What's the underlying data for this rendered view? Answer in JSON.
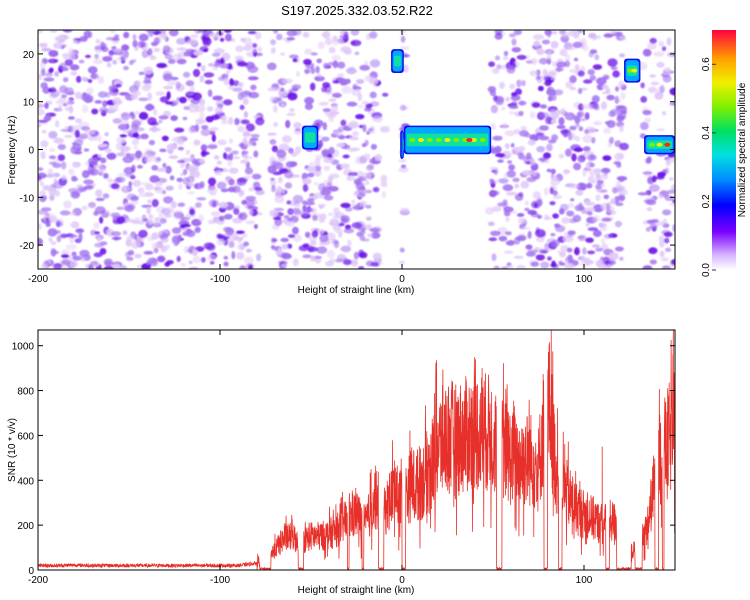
{
  "title": "S197.2025.332.03.52.R22",
  "colors": {
    "snr_line": "#e8302a",
    "heat_light": "#e0c8f8",
    "heat_mid": "#a070f0",
    "heat_dark": "#6a10e8",
    "background": "#ffffff"
  },
  "chart_data": [
    {
      "type": "heatmap",
      "name": "spectrogram",
      "xlabel": "Height of straight line (km)",
      "ylabel": "Frequency (Hz)",
      "xlim": [
        -200,
        150
      ],
      "ylim": [
        -25,
        25
      ],
      "xticks": [
        "-200",
        "-100",
        "0",
        "100"
      ],
      "xtick_values": [
        -200,
        -100,
        0,
        100
      ],
      "yticks": [
        "-20",
        "-10",
        "0",
        "10",
        "20"
      ],
      "ytick_values": [
        -20,
        -10,
        0,
        10,
        20
      ],
      "colorbar": {
        "label": "Normalized spectral amplitude",
        "range": [
          0.0,
          0.7
        ],
        "ticks": [
          "0.0",
          "0.2",
          "0.4",
          "0.6"
        ],
        "tick_values": [
          0.0,
          0.2,
          0.4,
          0.6
        ]
      },
      "blank_regions": [
        [
          -78,
          -72
        ],
        [
          -57,
          -54
        ],
        [
          -13,
          -10
        ],
        [
          -9,
          0
        ],
        [
          2,
          48
        ],
        [
          122,
          132
        ],
        [
          139,
          141
        ]
      ],
      "features": [
        {
          "label": "bright spot",
          "x": [
            -55,
            -46
          ],
          "y": [
            0,
            5
          ],
          "peak": 0.3
        },
        {
          "label": "bright spot",
          "x": [
            -1,
            1
          ],
          "y": [
            -2,
            4
          ],
          "peak": 0.2
        },
        {
          "label": "bright spot",
          "x": [
            -6,
            1
          ],
          "y": [
            16,
            21
          ],
          "peak": 0.35
        },
        {
          "label": "signal band",
          "x": [
            1,
            49
          ],
          "y": [
            -1,
            5
          ],
          "peak": 0.68
        },
        {
          "label": "bright spot",
          "x": [
            122,
            131
          ],
          "y": [
            14,
            19
          ],
          "peak": 0.45
        },
        {
          "label": "signal band",
          "x": [
            133,
            150
          ],
          "y": [
            -1,
            3
          ],
          "peak": 0.68
        }
      ]
    },
    {
      "type": "line",
      "name": "snr",
      "xlabel": "Height of straight line (km)",
      "ylabel": "SNR (10 * v/v)",
      "xlim": [
        -200,
        150
      ],
      "ylim": [
        0,
        1070
      ],
      "xticks": [
        "-200",
        "-100",
        "0",
        "100"
      ],
      "xtick_values": [
        -200,
        -100,
        0,
        100
      ],
      "yticks": [
        "0",
        "200",
        "400",
        "600",
        "800",
        "1000"
      ],
      "ytick_values": [
        0,
        200,
        400,
        600,
        800,
        1000
      ],
      "series": [
        {
          "name": "SNR",
          "color": "#e8302a",
          "x": [
            -200,
            -190,
            -180,
            -170,
            -160,
            -150,
            -140,
            -130,
            -120,
            -110,
            -100,
            -90,
            -80,
            -75,
            -70,
            -65,
            -60,
            -55,
            -50,
            -45,
            -40,
            -35,
            -30,
            -25,
            -20,
            -15,
            -10,
            -5,
            0,
            5,
            10,
            15,
            20,
            25,
            30,
            35,
            40,
            45,
            50,
            55,
            60,
            65,
            70,
            75,
            80,
            85,
            90,
            95,
            100,
            105,
            110,
            115,
            120,
            125,
            130,
            135,
            140,
            145,
            150
          ],
          "y": [
            20,
            20,
            22,
            20,
            20,
            20,
            20,
            20,
            20,
            20,
            20,
            20,
            30,
            45,
            90,
            140,
            150,
            130,
            150,
            150,
            160,
            180,
            230,
            250,
            200,
            320,
            250,
            350,
            300,
            380,
            380,
            450,
            550,
            600,
            580,
            600,
            620,
            620,
            600,
            560,
            500,
            480,
            500,
            450,
            800,
            420,
            350,
            280,
            250,
            230,
            200,
            220,
            200,
            80,
            100,
            200,
            450,
            550,
            640
          ],
          "peaks": [
            {
              "x": 82,
              "y": 1070
            },
            {
              "x": 19,
              "y": 935
            },
            {
              "x": 44,
              "y": 900
            },
            {
              "x": 110,
              "y": 550
            },
            {
              "x": 145,
              "y": 660
            }
          ]
        }
      ]
    }
  ]
}
